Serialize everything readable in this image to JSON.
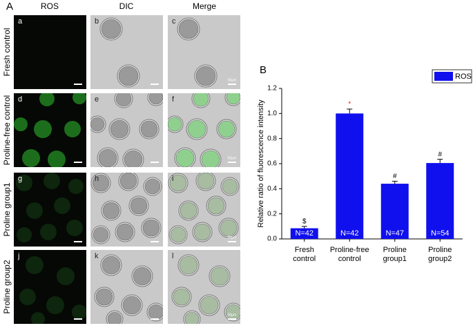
{
  "panel_a": {
    "label": "A",
    "columns": [
      "ROS",
      "DIC",
      "Merge"
    ],
    "rows": [
      "Fresh control",
      "Proline-free control",
      "Proline group1",
      "Proline group2"
    ],
    "panel_letters": [
      "a",
      "b",
      "c",
      "d",
      "e",
      "f",
      "g",
      "h",
      "i",
      "j",
      "k",
      "l"
    ],
    "scale_label": "50μm"
  },
  "chart_data": {
    "type": "bar",
    "panel_label": "B",
    "y_label": "Relative ratio of fluorescence intensity",
    "categories": [
      "Fresh control",
      "Proline-free control",
      "Proline group1",
      "Proline group2"
    ],
    "series": [
      {
        "name": "ROS",
        "color": "#1010ee",
        "values": [
          0.085,
          1.0,
          0.44,
          0.605
        ],
        "errors": [
          0.015,
          0.035,
          0.02,
          0.03
        ]
      }
    ],
    "n_labels": [
      "N=42",
      "N=42",
      "N=47",
      "N=54"
    ],
    "annotations": [
      "$",
      "*",
      "#",
      "#"
    ],
    "annotation_colors": [
      "#000000",
      "#e02020",
      "#000000",
      "#000000"
    ],
    "ylim": [
      0,
      1.2
    ],
    "yticks": [
      {
        "value": 0,
        "label": "0.0"
      },
      0.2,
      0.4,
      0.6,
      0.8,
      {
        "value": 1,
        "label": "1.0"
      },
      1.2
    ],
    "legend": "top-right"
  }
}
